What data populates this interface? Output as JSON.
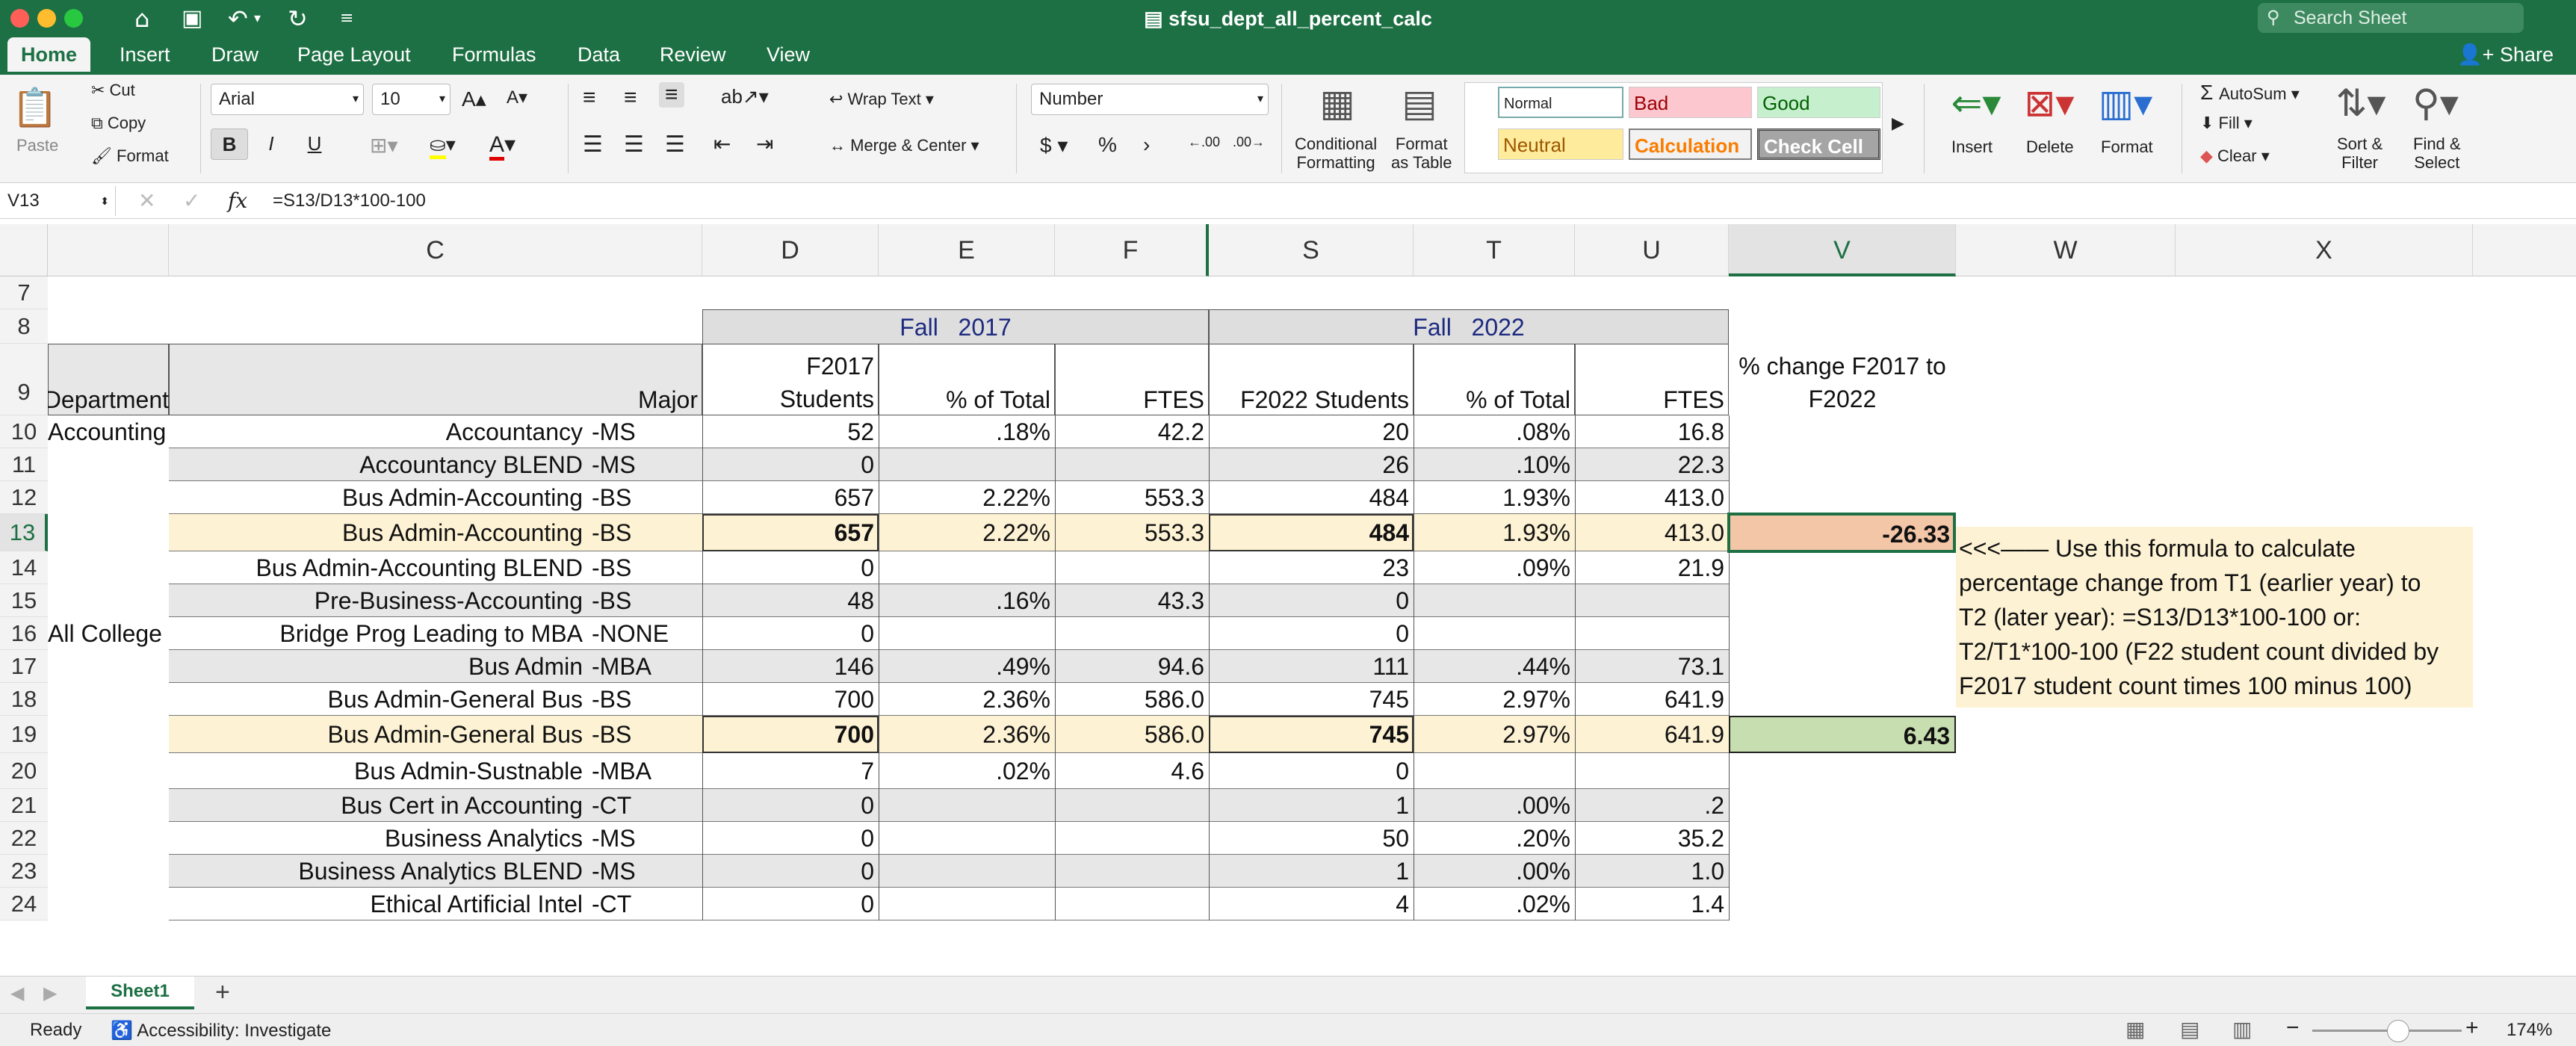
{
  "titlebar": {
    "doc_title": "sfsu_dept_all_percent_calc",
    "search_placeholder": "Search Sheet",
    "colors": {
      "excel_green": "#1d7044"
    }
  },
  "tabs": [
    {
      "label": "Home",
      "active": true
    },
    {
      "label": "Insert"
    },
    {
      "label": "Draw"
    },
    {
      "label": "Page Layout"
    },
    {
      "label": "Formulas"
    },
    {
      "label": "Data"
    },
    {
      "label": "Review"
    },
    {
      "label": "View"
    }
  ],
  "share_label": "Share",
  "ribbon": {
    "paste": "Paste",
    "cut": "Cut",
    "copy": "Copy",
    "format": "Format",
    "font_name": "Arial",
    "font_size": "10",
    "bold": "B",
    "italic": "I",
    "underline": "U",
    "wrap_text": "Wrap Text",
    "merge_center": "Merge & Center",
    "number_format": "Number",
    "currency": "$",
    "percent": "%",
    "comma": "›",
    "inc_decimal": ".00",
    "dec_decimal": ".00",
    "cond_format_1": "Conditional",
    "cond_format_2": "Formatting",
    "format_table_1": "Format",
    "format_table_2": "as Table",
    "styles": {
      "normal": "Normal",
      "bad": "Bad",
      "good": "Good",
      "neutral": "Neutral",
      "calculation": "Calculation",
      "check_cell": "Check Cell"
    },
    "insert": "Insert",
    "delete": "Delete",
    "format_cells": "Format",
    "autosum": "AutoSum",
    "fill": "Fill",
    "clear": "Clear",
    "sort_filter_1": "Sort &",
    "sort_filter_2": "Filter",
    "find_select_1": "Find &",
    "find_select_2": "Select"
  },
  "formula_bar": {
    "name_box": "V13",
    "fx": "fx",
    "formula": "=S13/D13*100-100"
  },
  "columns": [
    "C",
    "D",
    "E",
    "F",
    "S",
    "T",
    "U",
    "V",
    "W",
    "X"
  ],
  "selected_column": "V",
  "selected_row": "13",
  "rows": [
    "7",
    "8",
    "9",
    "10",
    "11",
    "12",
    "13",
    "14",
    "15",
    "16",
    "17",
    "18",
    "19",
    "20",
    "21",
    "22",
    "23",
    "24"
  ],
  "headers": {
    "fall2017": "Fall   2017",
    "fall2022": "Fall   2022",
    "department": "Department",
    "major": "Major",
    "f2017_students_1": "F2017",
    "f2017_students_2": "Students",
    "pct_total": "% of Total",
    "ftes": "FTES",
    "f2022_students": "F2022 Students",
    "pct_change_1": "% change F2017 to",
    "pct_change_2": "F2022"
  },
  "data_rows": [
    {
      "dept": "Accounting",
      "major": "Accountancy",
      "deg": "-MS",
      "d": "52",
      "e": ".18%",
      "f": "42.2",
      "s": "20",
      "t": ".08%",
      "u": "16.8",
      "v": ""
    },
    {
      "dept": "",
      "major": "Accountancy BLEND",
      "deg": "-MS",
      "d": "0",
      "e": "",
      "f": "",
      "s": "26",
      "t": ".10%",
      "u": "22.3",
      "v": ""
    },
    {
      "dept": "",
      "major": "Bus Admin-Accounting",
      "deg": "-BS",
      "d": "657",
      "e": "2.22%",
      "f": "553.3",
      "s": "484",
      "t": "1.93%",
      "u": "413.0",
      "v": ""
    },
    {
      "dept": "",
      "major": "Bus Admin-Accounting",
      "deg": "-BS",
      "d": "657",
      "e": "2.22%",
      "f": "553.3",
      "s": "484",
      "t": "1.93%",
      "u": "413.0",
      "v": "-26.33",
      "highlight": true
    },
    {
      "dept": "",
      "major": "Bus Admin-Accounting BLEND",
      "deg": "-BS",
      "d": "0",
      "e": "",
      "f": "",
      "s": "23",
      "t": ".09%",
      "u": "21.9",
      "v": ""
    },
    {
      "dept": "",
      "major": "Pre-Business-Accounting",
      "deg": "-BS",
      "d": "48",
      "e": ".16%",
      "f": "43.3",
      "s": "0",
      "t": "",
      "u": "",
      "v": ""
    },
    {
      "dept": "All College",
      "major": "Bridge Prog Leading to MBA",
      "deg": "-NONE",
      "d": "0",
      "e": "",
      "f": "",
      "s": "0",
      "t": "",
      "u": "",
      "v": ""
    },
    {
      "dept": "",
      "major": "Bus Admin",
      "deg": "-MBA",
      "d": "146",
      "e": ".49%",
      "f": "94.6",
      "s": "111",
      "t": ".44%",
      "u": "73.1",
      "v": ""
    },
    {
      "dept": "",
      "major": "Bus Admin-General Bus",
      "deg": "-BS",
      "d": "700",
      "e": "2.36%",
      "f": "586.0",
      "s": "745",
      "t": "2.97%",
      "u": "641.9",
      "v": ""
    },
    {
      "dept": "",
      "major": "Bus Admin-General Bus",
      "deg": "-BS",
      "d": "700",
      "e": "2.36%",
      "f": "586.0",
      "s": "745",
      "t": "2.97%",
      "u": "641.9",
      "v": "6.43",
      "highlight": true
    },
    {
      "dept": "",
      "major": "Bus Admin-Sustnable",
      "deg": "-MBA",
      "d": "7",
      "e": ".02%",
      "f": "4.6",
      "s": "0",
      "t": "",
      "u": "",
      "v": ""
    },
    {
      "dept": "",
      "major": "Bus Cert in Accounting",
      "deg": "-CT",
      "d": "0",
      "e": "",
      "f": "",
      "s": "1",
      "t": ".00%",
      "u": ".2",
      "v": ""
    },
    {
      "dept": "",
      "major": "Business Analytics",
      "deg": "-MS",
      "d": "0",
      "e": "",
      "f": "",
      "s": "50",
      "t": ".20%",
      "u": "35.2",
      "v": ""
    },
    {
      "dept": "",
      "major": "Business Analytics BLEND",
      "deg": "-MS",
      "d": "0",
      "e": "",
      "f": "",
      "s": "1",
      "t": ".00%",
      "u": "1.0",
      "v": ""
    },
    {
      "dept": "",
      "major": "Ethical Artificial Intel",
      "deg": "-CT",
      "d": "0",
      "e": "",
      "f": "",
      "s": "4",
      "t": ".02%",
      "u": "1.4",
      "v": ""
    }
  ],
  "note": {
    "line1": "<<<—— Use this formula to calculate",
    "line2": "percentage change from T1 (earlier year) to",
    "line3": "T2 (later year): =S13/D13*100-100 or:",
    "line4": "T2/T1*100-100 (F22 student count divided by",
    "line5": "F2017 student count times 100 minus 100)"
  },
  "sheet_tab": "Sheet1",
  "status": {
    "ready": "Ready",
    "accessibility": "Accessibility: Investigate",
    "zoom": "174%"
  }
}
